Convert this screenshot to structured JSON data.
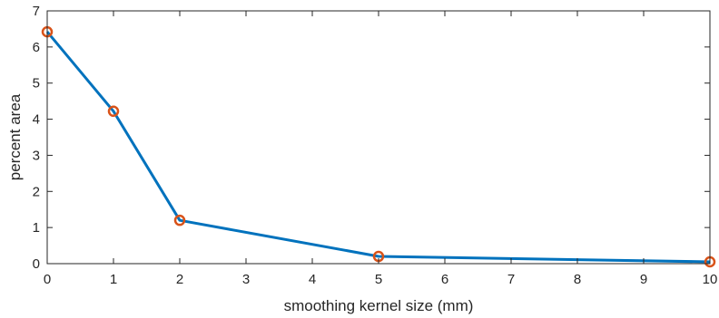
{
  "chart_data": {
    "type": "line",
    "xlabel": "smoothing kernel size (mm)",
    "ylabel": "percent area",
    "xlim": [
      0,
      10
    ],
    "ylim": [
      0,
      7
    ],
    "xticks": [
      "0",
      "1",
      "2",
      "3",
      "4",
      "5",
      "6",
      "7",
      "8",
      "9",
      "10"
    ],
    "yticks": [
      "0",
      "1",
      "2",
      "3",
      "4",
      "5",
      "6",
      "7"
    ],
    "grid": false,
    "series": [
      {
        "x": [
          0,
          1,
          2,
          5,
          10
        ],
        "y": [
          6.42,
          4.22,
          1.2,
          0.2,
          0.05
        ],
        "line_color": "#0072BD",
        "marker_color": "#D95319",
        "marker": "circle"
      }
    ]
  }
}
